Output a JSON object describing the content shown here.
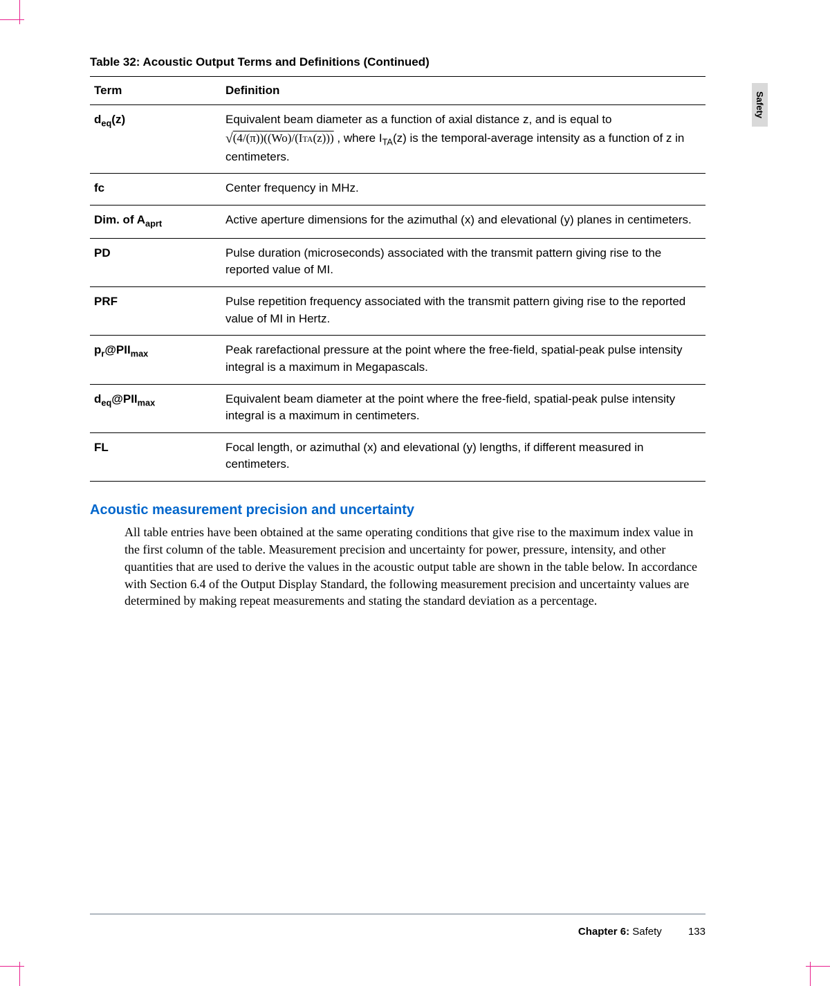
{
  "colors": {
    "crop_mark": "#e91e8c",
    "side_tab_bg": "#d9d9d9",
    "text": "#000000",
    "section_heading": "#0066cc",
    "footer_rule": "#b0b7bf"
  },
  "side_tab": "Safety",
  "table": {
    "caption": "Table 32: Acoustic Output Terms and Definitions (Continued)",
    "caption_fontsize": 17,
    "header": {
      "term": "Term",
      "definition": "Definition",
      "fontsize": 17
    },
    "body_fontsize": 17,
    "rows": [
      {
        "term_html": "d<span class=\"sub\">eq</span>(z)",
        "def_html": "Equivalent beam diameter as a function of axial distance z, and is equal to <span class=\"formula\"><span class=\"sqrt-sym\">√</span><span class=\"overline\">(4/(π))((Wo)/(I<span class=\"sc\">ta</span>(z)))</span></span> , where I<span class=\"sub\">TA</span>(z) is the temporal-average intensity as a function of z in centimeters."
      },
      {
        "term_html": "fc",
        "def_html": "Center frequency in MHz."
      },
      {
        "term_html": "Dim. of A<span class=\"sub\">aprt</span>",
        "def_html": "Active aperture dimensions for the azimuthal (x) and elevational (y) planes in centimeters."
      },
      {
        "term_html": "PD",
        "def_html": "Pulse duration (microseconds) associated with the transmit pattern giving rise to the reported value of MI."
      },
      {
        "term_html": "PRF",
        "def_html": "Pulse repetition frequency associated with the transmit pattern giving rise to the reported value of MI in Hertz."
      },
      {
        "term_html": "p<span class=\"sub\">r</span>@PII<span class=\"sub\">max</span>",
        "def_html": "Peak rarefactional pressure at the point where the free-field, spatial-peak pulse intensity integral is a maximum in Megapascals."
      },
      {
        "term_html": "d<span class=\"sub\">eq</span>@PII<span class=\"sub\">max</span>",
        "def_html": "Equivalent beam diameter at the point where the free-field, spatial-peak pulse intensity integral is a maximum in centimeters."
      },
      {
        "term_html": "FL",
        "def_html": "Focal length, or azimuthal (x) and elevational (y) lengths, if different measured in centimeters."
      }
    ]
  },
  "section": {
    "heading": "Acoustic measurement precision and uncertainty",
    "heading_color": "#0066cc",
    "heading_fontsize": 20,
    "body": "All table entries have been obtained at the same operating conditions that give rise to the maximum index value in the first column of the table. Measurement precision and uncertainty for power, pressure, intensity, and other quantities that are used to derive the values in the acoustic output table are shown in the table below. In accordance with Section 6.4 of the Output Display Standard, the following measurement precision and uncertainty values are determined by making repeat measurements and stating the standard deviation as a percentage.",
    "body_fontsize": 18
  },
  "footer": {
    "chapter_label": "Chapter 6:",
    "chapter_name": "Safety",
    "page": "133"
  }
}
